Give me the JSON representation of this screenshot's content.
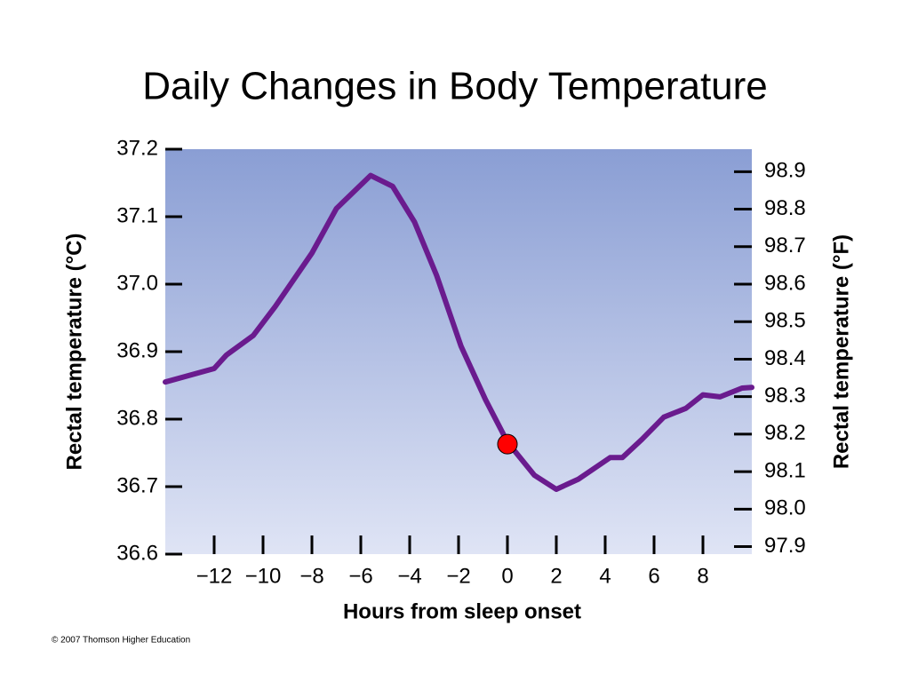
{
  "chart_data": {
    "type": "line",
    "title": "Daily Changes in Body Temperature",
    "x_label": "Hours from sleep onset",
    "y_label": "Rectal temperature (°C)",
    "y2_label": "Rectal temperature (°F)",
    "source": "© 2007 Thomson Higher Education",
    "xlim": [
      -14,
      10
    ],
    "xticks": [
      {
        "value": -12,
        "label": "−12"
      },
      {
        "value": -10,
        "label": "−10"
      },
      {
        "value": -8,
        "label": "−8"
      },
      {
        "value": -6,
        "label": "−6"
      },
      {
        "value": -4,
        "label": "−4"
      },
      {
        "value": -2,
        "label": "−2"
      },
      0,
      2,
      4,
      6,
      8
    ],
    "ylim": [
      36.6,
      37.2
    ],
    "yticks": [
      36.6,
      36.7,
      36.8,
      36.9,
      {
        "value": 37,
        "label": "37.0"
      },
      37.1,
      37.2
    ],
    "y2lim": [
      97.88,
      98.96
    ],
    "y2ticks": [
      97.9,
      {
        "value": 98,
        "label": "98.0"
      },
      98.1,
      98.2,
      98.3,
      98.4,
      98.5,
      98.6,
      98.7,
      98.8,
      98.9
    ],
    "series": [
      {
        "color": "#6a1b8e",
        "x": [
          -14,
          -12,
          -11.5,
          -10.4,
          -9.5,
          -8,
          -7,
          -5.6,
          -4.7,
          -3.8,
          -2.9,
          -1.9,
          -0.9,
          0,
          1.1,
          2,
          2.9,
          4.2,
          4.7,
          5.5,
          6.4,
          7.3,
          8,
          8.7,
          9.6,
          10
        ],
        "values": [
          36.855,
          36.875,
          36.895,
          36.924,
          36.967,
          37.046,
          37.112,
          37.161,
          37.145,
          37.092,
          37.013,
          36.908,
          36.829,
          36.766,
          36.717,
          36.696,
          36.711,
          36.743,
          36.743,
          36.77,
          36.803,
          36.816,
          36.836,
          36.833,
          36.846,
          36.847
        ]
      }
    ],
    "marker": {
      "x": 0,
      "value": 36.763,
      "color": "#ff0000"
    }
  }
}
